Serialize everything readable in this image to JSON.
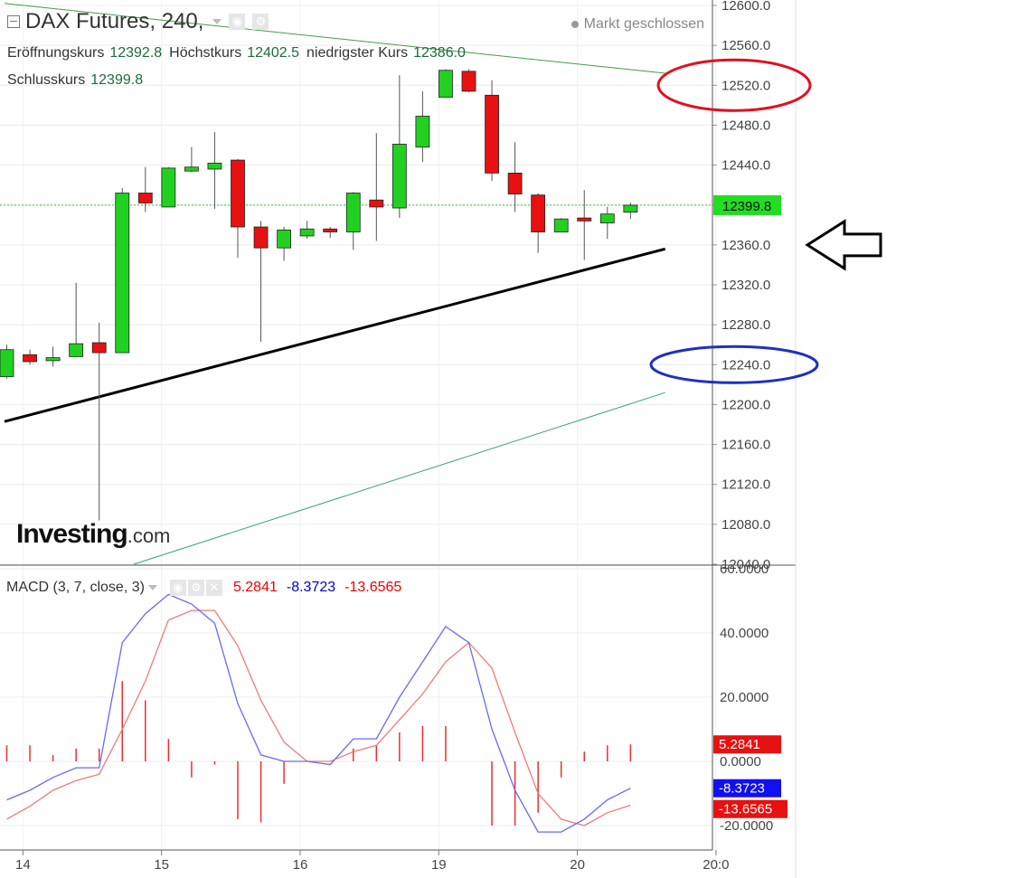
{
  "header": {
    "title": "DAX Futures, 240,",
    "market_status": "Markt geschlossen",
    "open_label": "Eröffnungskurs",
    "open_value": "12392.8",
    "high_label": "Höchstkurs",
    "high_value": "12402.5",
    "low_label": "niedrigster Kurs",
    "low_value": "12386.0",
    "close_label": "Schlusskurs",
    "close_value": "12399.8"
  },
  "logo": {
    "main": "Investing",
    "suffix": ".com"
  },
  "macd_header": {
    "label": "MACD (3, 7, close, 3)",
    "v1": "5.2841",
    "v2": "-8.3723",
    "v3": "-13.6565"
  },
  "colors": {
    "up": "#22d022",
    "down": "#e81010",
    "macd": "#6a6af0",
    "signal": "#f07a7a",
    "hist": "#e83030"
  },
  "chart_data": [
    {
      "type": "candlestick",
      "price_ticks": [
        "12600.0",
        "12560.0",
        "12520.0",
        "12480.0",
        "12440.0",
        "12400.0",
        "12360.0",
        "12320.0",
        "12280.0",
        "12240.0",
        "12200.0",
        "12160.0",
        "12120.0",
        "12080.0",
        "12040.0"
      ],
      "ylim": [
        12040,
        12600
      ],
      "last_price": 12399.8,
      "last_price_label": "12399.8",
      "candles": [
        {
          "o": 12228,
          "h": 12260,
          "l": 12226,
          "c": 12255
        },
        {
          "o": 12250,
          "h": 12255,
          "l": 12240,
          "c": 12243
        },
        {
          "o": 12244,
          "h": 12258,
          "l": 12238,
          "c": 12247
        },
        {
          "o": 12248,
          "h": 12322,
          "l": 12248,
          "c": 12261
        },
        {
          "o": 12262,
          "h": 12282,
          "l": 12084,
          "c": 12252
        },
        {
          "o": 12252,
          "h": 12417,
          "l": 12252,
          "c": 12412
        },
        {
          "o": 12412,
          "h": 12438,
          "l": 12393,
          "c": 12402
        },
        {
          "o": 12398,
          "h": 12438,
          "l": 12398,
          "c": 12437
        },
        {
          "o": 12434,
          "h": 12458,
          "l": 12433,
          "c": 12438
        },
        {
          "o": 12436,
          "h": 12473,
          "l": 12396,
          "c": 12442
        },
        {
          "o": 12445,
          "h": 12446,
          "l": 12347,
          "c": 12378
        },
        {
          "o": 12378,
          "h": 12384,
          "l": 12263,
          "c": 12357
        },
        {
          "o": 12357,
          "h": 12378,
          "l": 12344,
          "c": 12375
        },
        {
          "o": 12369,
          "h": 12384,
          "l": 12366,
          "c": 12376
        },
        {
          "o": 12376,
          "h": 12378,
          "l": 12367,
          "c": 12373
        },
        {
          "o": 12373,
          "h": 12413,
          "l": 12355,
          "c": 12412
        },
        {
          "o": 12405,
          "h": 12472,
          "l": 12364,
          "c": 12398
        },
        {
          "o": 12397,
          "h": 12530,
          "l": 12387,
          "c": 12461
        },
        {
          "o": 12458,
          "h": 12514,
          "l": 12443,
          "c": 12489
        },
        {
          "o": 12508,
          "h": 12536,
          "l": 12508,
          "c": 12535
        },
        {
          "o": 12534,
          "h": 12536,
          "l": 12513,
          "c": 12514
        },
        {
          "o": 12510,
          "h": 12525,
          "l": 12424,
          "c": 12432
        },
        {
          "o": 12432,
          "h": 12463,
          "l": 12393,
          "c": 12411
        },
        {
          "o": 12410,
          "h": 12412,
          "l": 12352,
          "c": 12373
        },
        {
          "o": 12373,
          "h": 12387,
          "l": 12373,
          "c": 12386
        },
        {
          "o": 12387,
          "h": 12415,
          "l": 12345,
          "c": 12384
        },
        {
          "o": 12382,
          "h": 12398,
          "l": 12366,
          "c": 12391
        },
        {
          "o": 12392.8,
          "h": 12402.5,
          "l": 12386.0,
          "c": 12399.8
        }
      ],
      "trendlines": [
        {
          "x1": -0.1,
          "y1": 12602,
          "x2": 28.5,
          "y2": 12532,
          "color": "#4a9a4a",
          "width": 1
        },
        {
          "x1": -0.1,
          "y1": 12183,
          "x2": 28.5,
          "y2": 12356,
          "color": "#000000",
          "width": 3
        },
        {
          "x1": 5.5,
          "y1": 12040,
          "x2": 28.5,
          "y2": 12212,
          "color": "#3aa07a",
          "width": 1
        }
      ],
      "annotations": [
        {
          "shape": "ellipse",
          "cx_price": "12520.0",
          "color": "#e01020"
        },
        {
          "shape": "ellipse",
          "cx_price": "12240.0",
          "color": "#2030c0"
        },
        {
          "shape": "arrow-left",
          "at_price": "12360.0",
          "color": "#000000"
        }
      ]
    },
    {
      "type": "line",
      "title": "MACD (3, 7, close, 3)",
      "yticks": [
        "60.0000",
        "40.0000",
        "20.0000",
        "0.0000",
        "-20.0000"
      ],
      "ylim": [
        -27,
        60
      ],
      "macd": [
        -12,
        -9,
        -5,
        -2,
        -2,
        37,
        46,
        52,
        49,
        43,
        18,
        2,
        0,
        0,
        -1,
        7,
        7,
        20,
        31,
        42,
        37,
        10,
        -9,
        -22,
        -22,
        -18,
        -12,
        -8.3723
      ],
      "signal": [
        -18,
        -14,
        -9,
        -6,
        -4,
        10,
        25,
        44,
        47,
        47,
        36,
        19,
        6,
        0,
        0,
        3,
        5,
        13,
        21,
        31,
        37,
        29,
        9,
        -10,
        -18,
        -20,
        -16,
        -13.6565
      ],
      "histogram": [
        5,
        5,
        2,
        4,
        4,
        25,
        19,
        7,
        -5,
        -1,
        -18,
        -19,
        -7,
        0,
        0,
        4,
        5,
        9,
        11,
        11,
        0,
        -20,
        -20,
        -16,
        -5,
        3,
        5,
        5.2841
      ],
      "labels": [
        {
          "text": "5.2841",
          "value": 5.2841,
          "color": "#e81010"
        },
        {
          "text": "-8.3723",
          "value": -8.3723,
          "color": "#1010f0"
        },
        {
          "text": "-13.6565",
          "value": -13.6565,
          "color": "#e81010"
        }
      ]
    }
  ],
  "x_axis": {
    "labels": [
      {
        "text": "14",
        "i": 0.7
      },
      {
        "text": "15",
        "i": 6.7
      },
      {
        "text": "16",
        "i": 12.7
      },
      {
        "text": "19",
        "i": 18.7
      },
      {
        "text": "20",
        "i": 24.7
      },
      {
        "text": "20:0",
        "i": 30.7
      }
    ]
  }
}
